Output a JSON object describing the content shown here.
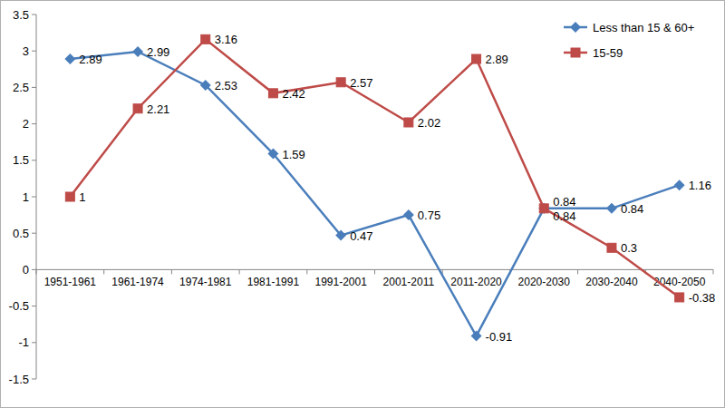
{
  "chart_data": {
    "type": "line",
    "categories": [
      "1951-1961",
      "1961-1974",
      "1974-1981",
      "1981-1991",
      "1991-2001",
      "2001-2011",
      "2011-2020",
      "2020-2030",
      "2030-2040",
      "2040-2050"
    ],
    "series": [
      {
        "name": "Less than 15 & 60+",
        "color": "#4a7ebb",
        "marker": "diamond",
        "values": [
          2.89,
          2.99,
          2.53,
          1.59,
          0.47,
          0.75,
          -0.91,
          0.84,
          0.84,
          1.16
        ]
      },
      {
        "name": "15-59",
        "color": "#be4b48",
        "marker": "square",
        "values": [
          1,
          2.21,
          3.16,
          2.42,
          2.57,
          2.02,
          2.89,
          0.84,
          0.3,
          -0.38
        ]
      }
    ],
    "ylim": [
      -1.5,
      3.5
    ],
    "yticks": [
      -1.5,
      -1,
      -0.5,
      0,
      0.5,
      1,
      1.5,
      2,
      2.5,
      3,
      3.5
    ],
    "grid": false,
    "legend": "top-right",
    "data_labels": true
  }
}
